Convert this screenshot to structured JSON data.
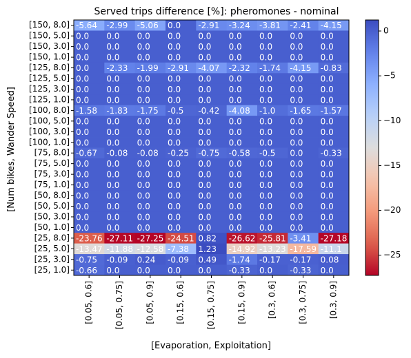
{
  "chart_data": {
    "type": "heatmap",
    "title": "Served trips difference [%]: pheromones - nominal",
    "xlabel": "[Evaporation, Exploitation]",
    "ylabel": "[Num bikes, Wander Speed]",
    "x_categories": [
      "[0.05, 0.6]",
      "[0.05, 0.75]",
      "[0.05, 0.9]",
      "[0.15, 0.6]",
      "[0.15, 0.75]",
      "[0.15, 0.9]",
      "[0.3, 0.6]",
      "[0.3, 0.75]",
      "[0.3, 0.9]"
    ],
    "y_categories": [
      "[150, 8.0]",
      "[150, 5.0]",
      "[150, 3.0]",
      "[150, 1.0]",
      "[125, 8.0]",
      "[125, 5.0]",
      "[125, 3.0]",
      "[125, 1.0]",
      "[100, 8.0]",
      "[100, 5.0]",
      "[100, 3.0]",
      "[100, 1.0]",
      "[75, 8.0]",
      "[75, 5.0]",
      "[75, 3.0]",
      "[75, 1.0]",
      "[50, 8.0]",
      "[50, 5.0]",
      "[50, 3.0]",
      "[50, 1.0]",
      "[25, 8.0]",
      "[25, 5.0]",
      "[25, 3.0]",
      "[25, 1.0]"
    ],
    "values": [
      [
        -5.64,
        -2.99,
        -5.06,
        0.0,
        -2.91,
        -3.24,
        -3.81,
        -2.41,
        -4.15
      ],
      [
        0.0,
        0.0,
        0.0,
        0.0,
        0.0,
        0.0,
        0.0,
        0.0,
        0.0
      ],
      [
        0.0,
        0.0,
        0.0,
        0.0,
        0.0,
        0.0,
        0.0,
        0.0,
        0.0
      ],
      [
        0.0,
        0.0,
        0.0,
        0.0,
        0.0,
        0.0,
        0.0,
        0.0,
        0.0
      ],
      [
        0.0,
        -2.33,
        -1.99,
        -2.91,
        -4.07,
        -2.32,
        -1.74,
        -4.15,
        -0.83
      ],
      [
        0.0,
        0.0,
        0.0,
        0.0,
        0.0,
        0.0,
        0.0,
        0.0,
        0.0
      ],
      [
        0.0,
        0.0,
        0.0,
        0.0,
        0.0,
        0.0,
        0.0,
        0.0,
        0.0
      ],
      [
        0.0,
        0.0,
        0.0,
        0.0,
        0.0,
        0.0,
        0.0,
        0.0,
        0.0
      ],
      [
        -1.58,
        -1.83,
        -1.75,
        -0.5,
        -0.42,
        -4.08,
        -1.0,
        -1.65,
        -1.57
      ],
      [
        0.0,
        0.0,
        0.0,
        0.0,
        0.0,
        0.0,
        0.0,
        0.0,
        0.0
      ],
      [
        0.0,
        0.0,
        0.0,
        0.0,
        0.0,
        0.0,
        0.0,
        0.0,
        0.0
      ],
      [
        0.0,
        0.0,
        0.0,
        0.0,
        0.0,
        0.0,
        0.0,
        0.0,
        0.0
      ],
      [
        -0.67,
        -0.08,
        -0.08,
        -0.25,
        -0.75,
        -0.58,
        -0.5,
        0.0,
        -0.33
      ],
      [
        0.0,
        0.0,
        0.0,
        0.0,
        0.0,
        0.0,
        0.0,
        0.0,
        0.0
      ],
      [
        0.0,
        0.0,
        0.0,
        0.0,
        0.0,
        0.0,
        0.0,
        0.0,
        0.0
      ],
      [
        0.0,
        0.0,
        0.0,
        0.0,
        0.0,
        0.0,
        0.0,
        0.0,
        0.0
      ],
      [
        0.0,
        0.0,
        0.0,
        0.0,
        0.0,
        0.0,
        0.0,
        0.0,
        0.0
      ],
      [
        0.0,
        0.0,
        0.0,
        0.0,
        0.0,
        0.0,
        0.0,
        0.0,
        0.0
      ],
      [
        0.0,
        0.0,
        0.0,
        0.0,
        0.0,
        0.0,
        0.0,
        0.0,
        0.0
      ],
      [
        0.0,
        0.0,
        0.0,
        0.0,
        0.0,
        0.0,
        0.0,
        0.0,
        0.0
      ],
      [
        -23.76,
        -27.11,
        -27.25,
        -24.51,
        0.82,
        -26.62,
        -25.81,
        -3.41,
        -27.18
      ],
      [
        -13.47,
        -11.88,
        -12.58,
        -7.38,
        1.23,
        -14.92,
        -13.23,
        -17.59,
        -11.1
      ],
      [
        -0.75,
        -0.09,
        0.24,
        -0.09,
        0.49,
        -1.74,
        -0.17,
        -0.17,
        0.08
      ],
      [
        -0.66,
        0.0,
        0.0,
        0.0,
        0.0,
        -0.33,
        0.0,
        -0.33,
        0.0
      ]
    ],
    "cell_labels": [
      [
        "-5.64",
        "-2.99",
        "-5.06",
        "0.0",
        "-2.91",
        "-3.24",
        "-3.81",
        "-2.41",
        "-4.15"
      ],
      [
        "0.0",
        "0.0",
        "0.0",
        "0.0",
        "0.0",
        "0.0",
        "0.0",
        "0.0",
        "0.0"
      ],
      [
        "0.0",
        "0.0",
        "0.0",
        "0.0",
        "0.0",
        "0.0",
        "0.0",
        "0.0",
        "0.0"
      ],
      [
        "0.0",
        "0.0",
        "0.0",
        "0.0",
        "0.0",
        "0.0",
        "0.0",
        "0.0",
        "0.0"
      ],
      [
        "0.0",
        "-2.33",
        "-1.99",
        "-2.91",
        "-4.07",
        "-2.32",
        "-1.74",
        "-4.15",
        "-0.83"
      ],
      [
        "0.0",
        "0.0",
        "0.0",
        "0.0",
        "0.0",
        "0.0",
        "0.0",
        "0.0",
        "0.0"
      ],
      [
        "0.0",
        "0.0",
        "0.0",
        "0.0",
        "0.0",
        "0.0",
        "0.0",
        "0.0",
        "0.0"
      ],
      [
        "0.0",
        "0.0",
        "0.0",
        "0.0",
        "0.0",
        "0.0",
        "0.0",
        "0.0",
        "0.0"
      ],
      [
        "-1.58",
        "-1.83",
        "-1.75",
        "-0.5",
        "-0.42",
        "-4.08",
        "-1.0",
        "-1.65",
        "-1.57"
      ],
      [
        "0.0",
        "0.0",
        "0.0",
        "0.0",
        "0.0",
        "0.0",
        "0.0",
        "0.0",
        "0.0"
      ],
      [
        "0.0",
        "0.0",
        "0.0",
        "0.0",
        "0.0",
        "0.0",
        "0.0",
        "0.0",
        "0.0"
      ],
      [
        "0.0",
        "0.0",
        "0.0",
        "0.0",
        "0.0",
        "0.0",
        "0.0",
        "0.0",
        "0.0"
      ],
      [
        "-0.67",
        "-0.08",
        "-0.08",
        "-0.25",
        "-0.75",
        "-0.58",
        "-0.5",
        "0.0",
        "-0.33"
      ],
      [
        "0.0",
        "0.0",
        "0.0",
        "0.0",
        "0.0",
        "0.0",
        "0.0",
        "0.0",
        "0.0"
      ],
      [
        "0.0",
        "0.0",
        "0.0",
        "0.0",
        "0.0",
        "0.0",
        "0.0",
        "0.0",
        "0.0"
      ],
      [
        "0.0",
        "0.0",
        "0.0",
        "0.0",
        "0.0",
        "0.0",
        "0.0",
        "0.0",
        "0.0"
      ],
      [
        "0.0",
        "0.0",
        "0.0",
        "0.0",
        "0.0",
        "0.0",
        "0.0",
        "0.0",
        "0.0"
      ],
      [
        "0.0",
        "0.0",
        "0.0",
        "0.0",
        "0.0",
        "0.0",
        "0.0",
        "0.0",
        "0.0"
      ],
      [
        "0.0",
        "0.0",
        "0.0",
        "0.0",
        "0.0",
        "0.0",
        "0.0",
        "0.0",
        "0.0"
      ],
      [
        "0.0",
        "0.0",
        "0.0",
        "0.0",
        "0.0",
        "0.0",
        "0.0",
        "0.0",
        "0.0"
      ],
      [
        "-23.76",
        "-27.11",
        "-27.25",
        "-24.51",
        "0.82",
        "-26.62",
        "-25.81",
        "-3.41",
        "-27.18"
      ],
      [
        "-13.47",
        "-11.88",
        "-12.58",
        "-7.38",
        "1.23",
        "-14.92",
        "-13.23",
        "-17.59",
        "-11.1"
      ],
      [
        "-0.75",
        "-0.09",
        "0.24",
        "-0.09",
        "0.49",
        "-1.74",
        "-0.17",
        "-0.17",
        "0.08"
      ],
      [
        "-0.66",
        "0.0",
        "0.0",
        "0.0",
        "0.0",
        "-0.33",
        "0.0",
        "-0.33",
        "0.0"
      ]
    ],
    "colormap": "coolwarm_r",
    "color_range": [
      -27.25,
      1.23
    ],
    "colorbar_ticks": [
      0,
      -5,
      -10,
      -15,
      -20,
      -25
    ],
    "colorbar_tick_labels": [
      "0",
      "−5",
      "−10",
      "−15",
      "−20",
      "−25"
    ],
    "cell_text_color": "#ffffff",
    "grid": false
  }
}
